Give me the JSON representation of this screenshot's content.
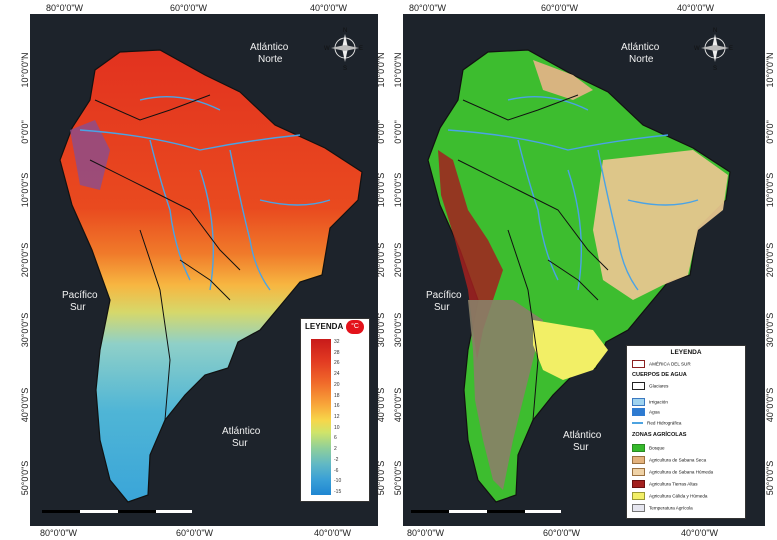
{
  "left_map": {
    "top_coords": [
      "80°0'0\"W",
      "60°0'0\"W",
      "40°0'0\"W"
    ],
    "bottom_coords": [
      "80°0'0\"W",
      "60°0'0\"W",
      "40°0'0\"W"
    ],
    "lat_coords": [
      "10°0'0\"N",
      "0°0'0\"",
      "10°0'0\"S",
      "20°0'0\"S",
      "30°0'0\"S",
      "40°0'0\"S",
      "50°0'0\"S"
    ],
    "ocean_labels": {
      "atl_norte_1": "Atlántico",
      "atl_norte_2": "Norte",
      "pac_sur_1": "Pacífico",
      "pac_sur_2": "Sur",
      "atl_sur_1": "Atlántico",
      "atl_sur_2": "Sur"
    },
    "compass": {
      "n": "N",
      "s": "S",
      "e": "E",
      "w": "W"
    },
    "legend": {
      "title": "LEYENDA",
      "unit": "°C",
      "ticks": [
        "32",
        "28",
        "26",
        "24",
        "20",
        "18",
        "16",
        "12",
        "10",
        "6",
        "2",
        "-2",
        "-6",
        "-10",
        "-15"
      ]
    }
  },
  "right_map": {
    "top_coords": [
      "80°0'0\"W",
      "60°0'0\"W",
      "40°0'0\"W"
    ],
    "bottom_coords": [
      "80°0'0\"W",
      "60°0'0\"W",
      "40°0'0\"W"
    ],
    "lat_coords": [
      "10°0'0\"N",
      "0°0'0\"",
      "10°0'0\"S",
      "20°0'0\"S",
      "30°0'0\"S",
      "40°0'0\"S",
      "50°0'0\"S"
    ],
    "ocean_labels": {
      "atl_norte_1": "Atlántico",
      "atl_norte_2": "Norte",
      "pac_sur_1": "Pacífico",
      "pac_sur_2": "Sur",
      "atl_sur_1": "Atlántico",
      "atl_sur_2": "Sur"
    },
    "compass": {
      "n": "N",
      "s": "S",
      "e": "E",
      "w": "W"
    },
    "legend": {
      "title": "LEYENDA",
      "items": [
        {
          "label": "AMÉRICA DEL SUR",
          "color": "#ffffff",
          "border": "#8b2020"
        },
        {
          "label": "Glaciares",
          "color": "#ffffff",
          "border": "#222222"
        },
        {
          "label": "Irrigación",
          "color": "#9fd3ef",
          "border": "#3b78c0"
        },
        {
          "label": "Agua",
          "color": "#2e7bd1",
          "border": "#2e7bd1"
        },
        {
          "label": "Red Hidrográfica",
          "color": "#4da3e0",
          "border": "#4da3e0"
        },
        {
          "label": "Bosque",
          "color": "#35b92b",
          "border": "#2a8a22"
        },
        {
          "label": "Agricultura de Sabana Seca",
          "color": "#e3b27d",
          "border": "#9a7040"
        },
        {
          "label": "Agricultura de Sabana Húmeda",
          "color": "#efd2a6",
          "border": "#9a7040"
        },
        {
          "label": "Agricultura Tierras Altas",
          "color": "#a3201e",
          "border": "#6a1010"
        },
        {
          "label": "Agricultura Cálida y Húmeda",
          "color": "#f2ef66",
          "border": "#999933"
        },
        {
          "label": "Temperatura Agrícola",
          "color": "#e6e6ef",
          "border": "#777777"
        }
      ],
      "heads": {
        "water": "CUERPOS DE AGUA",
        "zones": "ZONAS AGRÍCOLAS"
      }
    }
  }
}
